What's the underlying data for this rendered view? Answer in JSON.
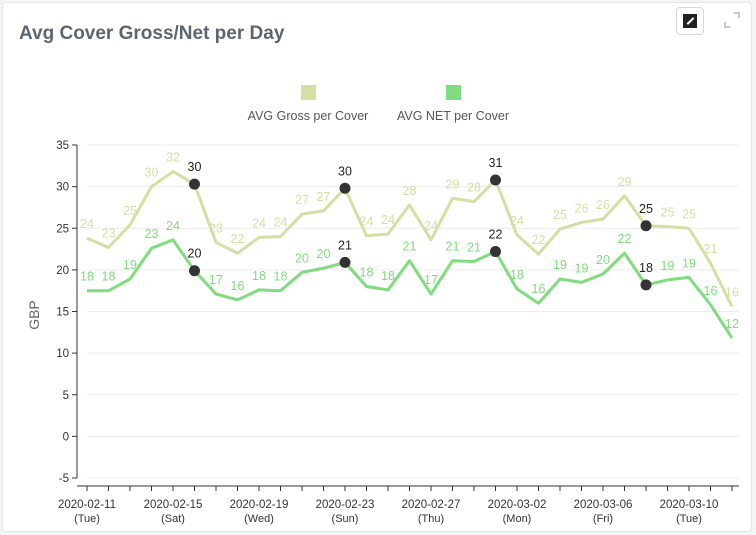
{
  "colors": {
    "gross": "#d6dea4",
    "net": "#7fdc7f",
    "marker": "#333333"
  },
  "icons": {
    "chart_type": "chart-type-icon",
    "expand": "expand-icon"
  },
  "chart_data": {
    "type": "line",
    "title": "Avg Cover Gross/Net per Day",
    "ylabel": "GBP",
    "xlabel": "",
    "ylim": [
      -5,
      35
    ],
    "yticks": [
      -5,
      0,
      5,
      10,
      15,
      20,
      25,
      30,
      35
    ],
    "grid": true,
    "legend": "top-center",
    "x": [
      "2020-02-11",
      "2020-02-12",
      "2020-02-13",
      "2020-02-14",
      "2020-02-15",
      "2020-02-16",
      "2020-02-17",
      "2020-02-18",
      "2020-02-19",
      "2020-02-20",
      "2020-02-21",
      "2020-02-22",
      "2020-02-23",
      "2020-02-24",
      "2020-02-25",
      "2020-02-26",
      "2020-02-27",
      "2020-02-28",
      "2020-02-29",
      "2020-03-01",
      "2020-03-02",
      "2020-03-03",
      "2020-03-04",
      "2020-03-05",
      "2020-03-06",
      "2020-03-07",
      "2020-03-08",
      "2020-03-09",
      "2020-03-10",
      "2020-03-11",
      "2020-03-12"
    ],
    "xticks": [
      {
        "date": "2020-02-11",
        "day": "(Tue)"
      },
      {
        "date": "2020-02-15",
        "day": "(Sat)"
      },
      {
        "date": "2020-02-19",
        "day": "(Wed)"
      },
      {
        "date": "2020-02-23",
        "day": "(Sun)"
      },
      {
        "date": "2020-02-27",
        "day": "(Thu)"
      },
      {
        "date": "2020-03-02",
        "day": "(Mon)"
      },
      {
        "date": "2020-03-06",
        "day": "(Fri)"
      },
      {
        "date": "2020-03-10",
        "day": "(Tue)"
      }
    ],
    "series": [
      {
        "name": "AVG Gross per Cover",
        "color": "#d6dea4",
        "values": [
          23.8,
          22.7,
          25.4,
          30,
          31.8,
          30.3,
          23.3,
          22,
          23.9,
          24,
          26.7,
          27.1,
          29.8,
          24.1,
          24.3,
          27.8,
          23.6,
          28.6,
          28.2,
          30.8,
          24.2,
          21.9,
          24.9,
          25.7,
          26.1,
          28.9,
          25.3,
          25.2,
          25,
          20.8,
          15.6
        ],
        "labels": [
          "24",
          "23",
          "25",
          "30",
          "32",
          "30",
          "23",
          "22",
          "24",
          "24",
          "27",
          "27",
          "30",
          "24",
          "24",
          "28",
          "24",
          "29",
          "28",
          "31",
          "24",
          "22",
          "25",
          "26",
          "26",
          "29",
          "25",
          "25",
          "25",
          "21",
          "16"
        ]
      },
      {
        "name": "AVG NET per Cover",
        "color": "#7fdc7f",
        "values": [
          17.5,
          17.5,
          18.9,
          22.6,
          23.6,
          19.9,
          17.1,
          16.4,
          17.6,
          17.5,
          19.7,
          20.2,
          20.9,
          18,
          17.6,
          21.1,
          17.1,
          21.1,
          21,
          22.2,
          17.7,
          16,
          18.9,
          18.5,
          19.5,
          22,
          18.2,
          18.8,
          19.1,
          15.8,
          11.8
        ],
        "labels": [
          "18",
          "18",
          "19",
          "23",
          "24",
          "20",
          "17",
          "16",
          "18",
          "18",
          "20",
          "20",
          "21",
          "18",
          "18",
          "21",
          "17",
          "21",
          "21",
          "22",
          "18",
          "16",
          "19",
          "19",
          "20",
          "22",
          "18",
          "19",
          "19",
          "16",
          "12"
        ]
      }
    ],
    "highlighted_points": [
      5,
      12,
      19,
      26
    ]
  }
}
